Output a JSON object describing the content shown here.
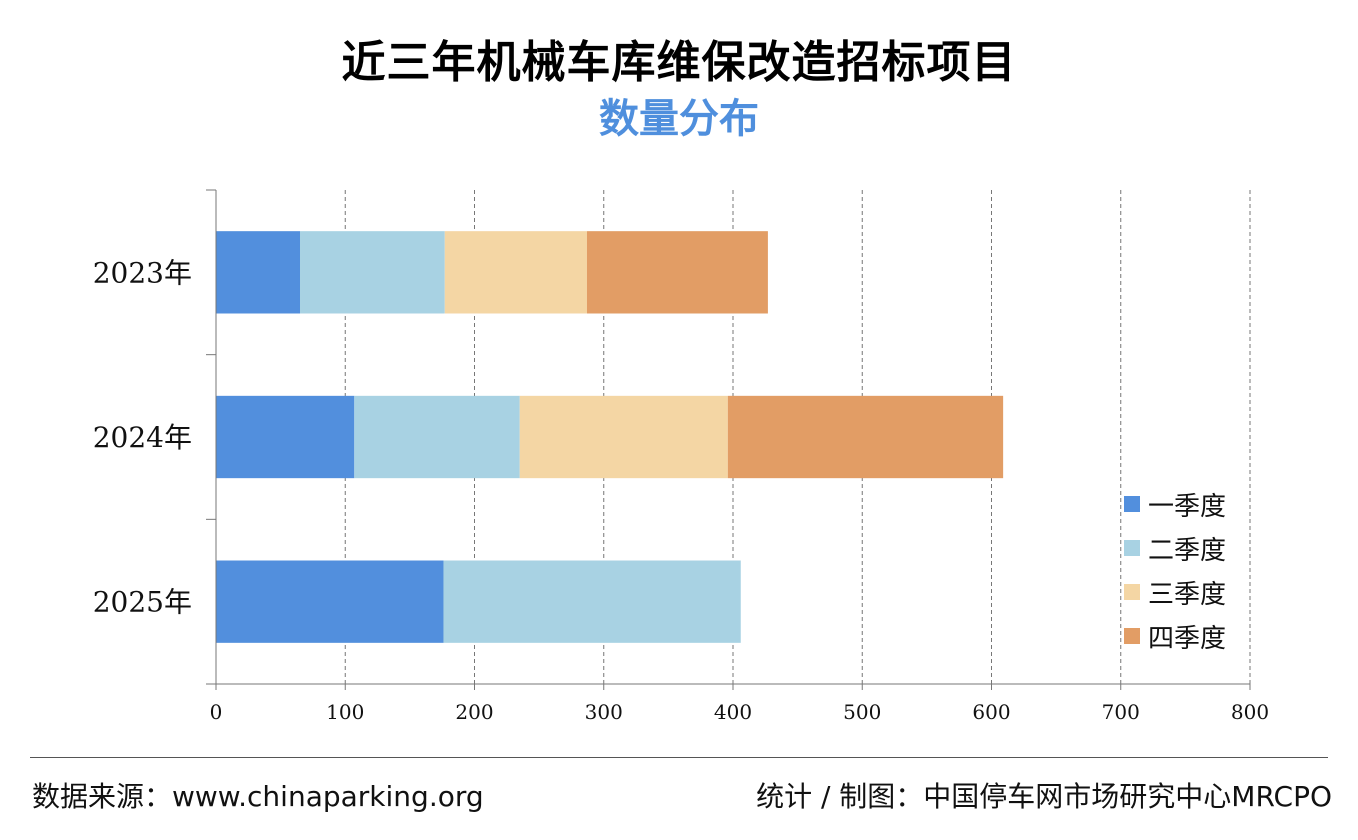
{
  "header": {
    "title": "近三年机械车库维保改造招标项目",
    "subtitle": "数量分布"
  },
  "footer": {
    "source": "数据来源：www.chinaparking.org",
    "credit": "统计 / 制图：中国停车网市场研究中心MRCPO"
  },
  "chart_data": {
    "type": "bar",
    "orientation": "horizontal",
    "stacked": true,
    "categories": [
      "2023年",
      "2024年",
      "2025年"
    ],
    "series": [
      {
        "name": "一季度",
        "color": "#528fdd",
        "values": [
          65,
          107,
          176
        ]
      },
      {
        "name": "二季度",
        "color": "#a8d2e3",
        "values": [
          112,
          128,
          230
        ]
      },
      {
        "name": "三季度",
        "color": "#f4d6a4",
        "values": [
          110,
          161,
          0
        ]
      },
      {
        "name": "四季度",
        "color": "#e29d65",
        "values": [
          140,
          213,
          0
        ]
      }
    ],
    "xticks": [
      "0",
      "100",
      "200",
      "300",
      "400",
      "500",
      "600",
      "700",
      "800"
    ],
    "xlim": [
      0,
      800
    ],
    "grid": "vertical-dashed",
    "legend_position": "right"
  }
}
